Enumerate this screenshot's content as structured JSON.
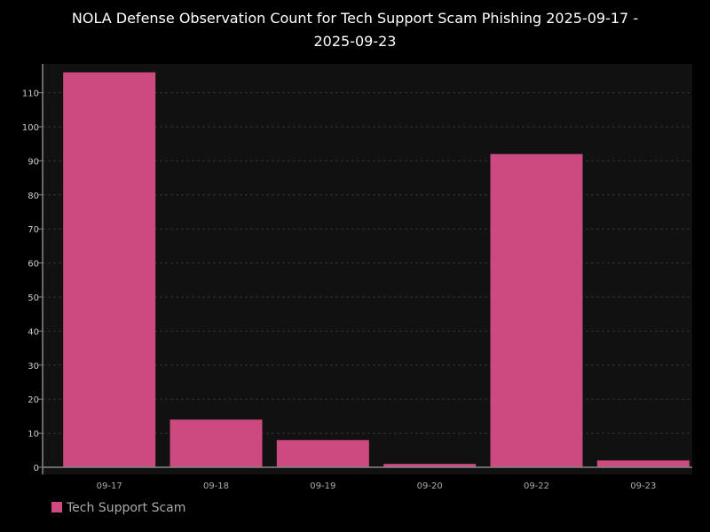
{
  "chart_data": {
    "type": "bar",
    "title_lines": [
      "NOLA Defense Observation Count for Tech Support Scam Phishing 2025-09-17 -",
      "2025-09-23"
    ],
    "categories": [
      "09-17",
      "09-18",
      "09-19",
      "09-20",
      "09-22",
      "09-23"
    ],
    "series": [
      {
        "name": "Tech Support Scam",
        "values": [
          116,
          14,
          8,
          1,
          92,
          2
        ]
      }
    ],
    "y_ticks": [
      0,
      10,
      20,
      30,
      40,
      50,
      60,
      70,
      80,
      90,
      100,
      110
    ],
    "ylim": [
      0,
      118
    ],
    "grid": true,
    "legend_position": "bottom-left",
    "colors": {
      "bar": "#cc4a7f",
      "plot_background": "#111111",
      "page_background": "#000000",
      "gridline": "#333333",
      "axis": "#888888"
    }
  }
}
